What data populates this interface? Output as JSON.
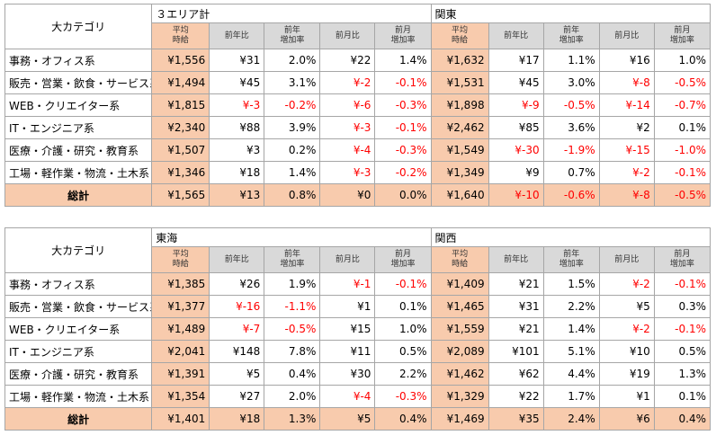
{
  "category_header": "大カテゴリ",
  "column_labels": {
    "avg": [
      "平均",
      "時給"
    ],
    "yoy": [
      "前年比"
    ],
    "yoy_rate": [
      "前年",
      "増加率"
    ],
    "mom": [
      "前月比"
    ],
    "mom_rate": [
      "前月",
      "増加率"
    ]
  },
  "blocks": [
    {
      "regions": [
        "３エリア計",
        "関東"
      ],
      "rows": [
        {
          "cat": "事務・オフィス系",
          "cells": [
            [
              "¥1,556",
              "¥31",
              "2.0%",
              "¥22",
              "1.4%"
            ],
            [
              "¥1,632",
              "¥17",
              "1.1%",
              "¥16",
              "1.0%"
            ]
          ]
        },
        {
          "cat": "販売・営業・飲食・サービス系",
          "cells": [
            [
              "¥1,494",
              "¥45",
              "3.1%",
              "¥-2",
              "-0.1%"
            ],
            [
              "¥1,531",
              "¥45",
              "3.0%",
              "¥-8",
              "-0.5%"
            ]
          ]
        },
        {
          "cat": "WEB・クリエイター系",
          "cells": [
            [
              "¥1,815",
              "¥-3",
              "-0.2%",
              "¥-6",
              "-0.3%"
            ],
            [
              "¥1,898",
              "¥-9",
              "-0.5%",
              "¥-14",
              "-0.7%"
            ]
          ]
        },
        {
          "cat": "IT・エンジニア系",
          "cells": [
            [
              "¥2,340",
              "¥88",
              "3.9%",
              "¥-3",
              "-0.1%"
            ],
            [
              "¥2,462",
              "¥85",
              "3.6%",
              "¥2",
              "0.1%"
            ]
          ]
        },
        {
          "cat": "医療・介護・研究・教育系",
          "cells": [
            [
              "¥1,507",
              "¥3",
              "0.2%",
              "¥-4",
              "-0.3%"
            ],
            [
              "¥1,549",
              "¥-30",
              "-1.9%",
              "¥-15",
              "-1.0%"
            ]
          ]
        },
        {
          "cat": "工場・軽作業・物流・土木系",
          "cells": [
            [
              "¥1,346",
              "¥18",
              "1.4%",
              "¥-3",
              "-0.2%"
            ],
            [
              "¥1,349",
              "¥9",
              "0.7%",
              "¥-2",
              "-0.1%"
            ]
          ]
        }
      ],
      "total": {
        "cat": "総計",
        "cells": [
          [
            "¥1,565",
            "¥13",
            "0.8%",
            "¥0",
            "0.0%"
          ],
          [
            "¥1,640",
            "¥-10",
            "-0.6%",
            "¥-8",
            "-0.5%"
          ]
        ]
      }
    },
    {
      "regions": [
        "東海",
        "関西"
      ],
      "rows": [
        {
          "cat": "事務・オフィス系",
          "cells": [
            [
              "¥1,385",
              "¥26",
              "1.9%",
              "¥-1",
              "-0.1%"
            ],
            [
              "¥1,409",
              "¥21",
              "1.5%",
              "¥-2",
              "-0.1%"
            ]
          ]
        },
        {
          "cat": "販売・営業・飲食・サービス系",
          "cells": [
            [
              "¥1,377",
              "¥-16",
              "-1.1%",
              "¥1",
              "0.1%"
            ],
            [
              "¥1,465",
              "¥31",
              "2.2%",
              "¥5",
              "0.3%"
            ]
          ]
        },
        {
          "cat": "WEB・クリエイター系",
          "cells": [
            [
              "¥1,489",
              "¥-7",
              "-0.5%",
              "¥15",
              "1.0%"
            ],
            [
              "¥1,559",
              "¥21",
              "1.4%",
              "¥-2",
              "-0.1%"
            ]
          ]
        },
        {
          "cat": "IT・エンジニア系",
          "cells": [
            [
              "¥2,041",
              "¥148",
              "7.8%",
              "¥11",
              "0.5%"
            ],
            [
              "¥2,089",
              "¥101",
              "5.1%",
              "¥10",
              "0.5%"
            ]
          ]
        },
        {
          "cat": "医療・介護・研究・教育系",
          "cells": [
            [
              "¥1,391",
              "¥5",
              "0.4%",
              "¥30",
              "2.2%"
            ],
            [
              "¥1,462",
              "¥62",
              "4.4%",
              "¥19",
              "1.3%"
            ]
          ]
        },
        {
          "cat": "工場・軽作業・物流・土木系",
          "cells": [
            [
              "¥1,354",
              "¥27",
              "2.0%",
              "¥-4",
              "-0.3%"
            ],
            [
              "¥1,329",
              "¥22",
              "1.7%",
              "¥1",
              "0.1%"
            ]
          ]
        }
      ],
      "total": {
        "cat": "総計",
        "cells": [
          [
            "¥1,401",
            "¥18",
            "1.3%",
            "¥5",
            "0.4%"
          ],
          [
            "¥1,469",
            "¥35",
            "2.4%",
            "¥6",
            "0.4%"
          ]
        ]
      }
    }
  ],
  "colors": {
    "avg_fill": "#f8cbad",
    "header_fill": "#d9d9d9",
    "negative": "#ff0000",
    "border": "#a6a6a6"
  }
}
